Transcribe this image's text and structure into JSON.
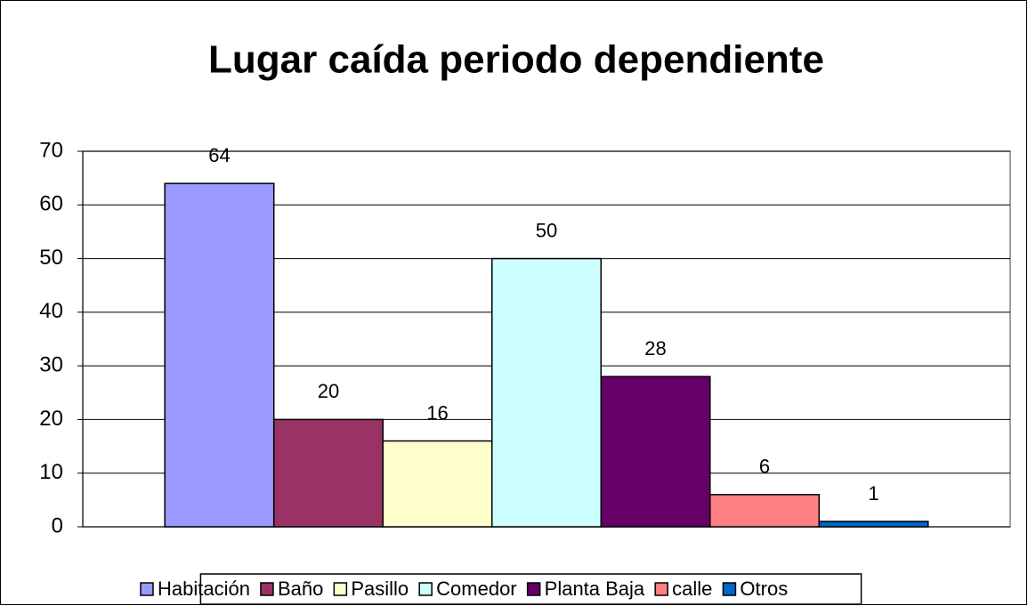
{
  "chart_data": {
    "type": "bar",
    "title": "Lugar caída periodo dependiente",
    "categories": [
      null
    ],
    "series": [
      {
        "name": "Habitación",
        "color": "#9999ff",
        "values": [
          64
        ]
      },
      {
        "name": "Baño",
        "color": "#993366",
        "values": [
          20
        ]
      },
      {
        "name": "Pasillo",
        "color": "#ffffcc",
        "values": [
          16
        ]
      },
      {
        "name": "Comedor",
        "color": "#ccffff",
        "values": [
          50
        ]
      },
      {
        "name": "Planta Baja",
        "color": "#660066",
        "values": [
          28
        ]
      },
      {
        "name": "calle",
        "color": "#ff8080",
        "values": [
          6
        ]
      },
      {
        "name": "Otros",
        "color": "#0066cc",
        "values": [
          1
        ]
      }
    ],
    "ylim": [
      0,
      70
    ],
    "yticks": [
      0,
      10,
      20,
      30,
      40,
      50,
      60,
      70
    ],
    "grid": true,
    "legend": "bottom"
  }
}
